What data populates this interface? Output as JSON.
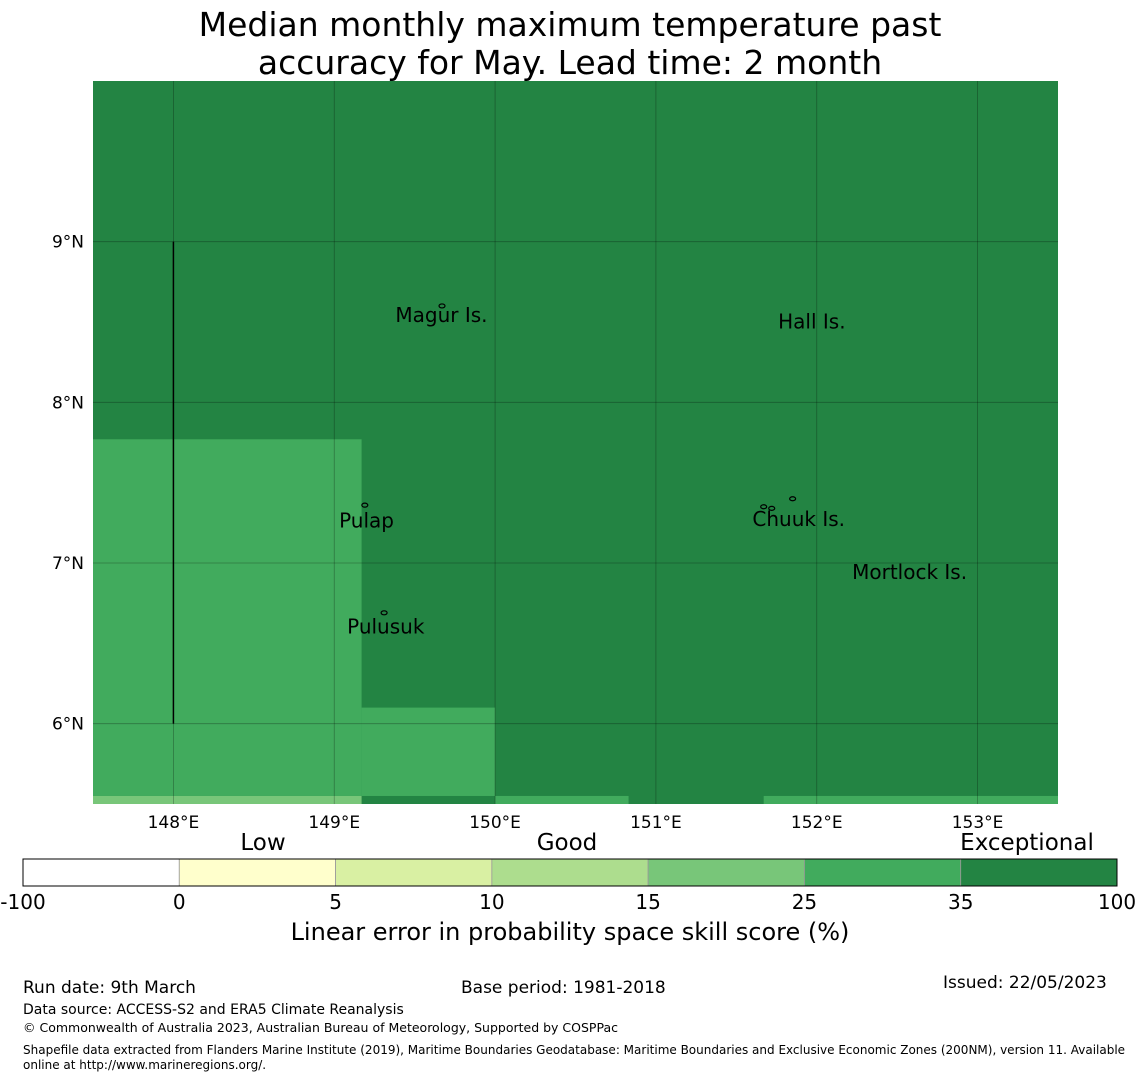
{
  "title": {
    "line1": "Median monthly maximum temperature past",
    "line2": "accuracy for May. Lead time: 2 month"
  },
  "map": {
    "lon_range": [
      147.5,
      153.5
    ],
    "lat_range": [
      5.5,
      10.0
    ],
    "lon_ticks": [
      {
        "value": 148,
        "label": "148°E"
      },
      {
        "value": 149,
        "label": "149°E"
      },
      {
        "value": 150,
        "label": "150°E"
      },
      {
        "value": 151,
        "label": "151°E"
      },
      {
        "value": 152,
        "label": "152°E"
      },
      {
        "value": 153,
        "label": "153°E"
      }
    ],
    "lat_ticks": [
      {
        "value": 9,
        "label": "9°N"
      },
      {
        "value": 8,
        "label": "8°N"
      },
      {
        "value": 7,
        "label": "7°N"
      },
      {
        "value": 6,
        "label": "6°N"
      }
    ],
    "background_category": "35-100",
    "regions": [
      {
        "category": "25-35",
        "lon": [
          147.5,
          149.17
        ],
        "lat": [
          5.55,
          7.77
        ]
      },
      {
        "category": "25-35",
        "lon": [
          149.17,
          150.0
        ],
        "lat": [
          5.55,
          6.1
        ]
      },
      {
        "category": "15-25",
        "lon": [
          147.5,
          149.17
        ],
        "lat": [
          5.5,
          5.55
        ]
      },
      {
        "category": "25-35",
        "lon": [
          150.0,
          150.83
        ],
        "lat": [
          5.5,
          5.55
        ]
      },
      {
        "category": "25-35",
        "lon": [
          151.67,
          153.5
        ],
        "lat": [
          5.5,
          5.55
        ]
      }
    ],
    "line": {
      "lon": 148.0,
      "lat": [
        6.0,
        9.0
      ]
    },
    "places": [
      {
        "name": "Magur Is.",
        "lon": 149.38,
        "lat": 8.5
      },
      {
        "name": "Hall Is.",
        "lon": 151.76,
        "lat": 8.46
      },
      {
        "name": "Pulap",
        "lon": 149.03,
        "lat": 7.22
      },
      {
        "name": "Chuuk Is.",
        "lon": 151.6,
        "lat": 7.23
      },
      {
        "name": "Mortlock Is.",
        "lon": 152.22,
        "lat": 6.9
      },
      {
        "name": "Pulusuk",
        "lon": 149.08,
        "lat": 6.56
      }
    ],
    "islands": [
      {
        "lon": 149.67,
        "lat": 8.6
      },
      {
        "lon": 149.19,
        "lat": 7.36
      },
      {
        "lon": 149.31,
        "lat": 6.69
      },
      {
        "lon": 151.85,
        "lat": 7.4
      },
      {
        "lon": 151.67,
        "lat": 7.35
      },
      {
        "lon": 151.72,
        "lat": 7.34
      }
    ]
  },
  "legend": {
    "categories": [
      {
        "label": "Low"
      },
      {
        "label": "Good"
      },
      {
        "label": "Exceptional"
      }
    ],
    "bins": [
      {
        "range": "-100-0",
        "color": "#ffffff"
      },
      {
        "range": "0-5",
        "color": "#ffffcc"
      },
      {
        "range": "5-10",
        "color": "#d9f0a3"
      },
      {
        "range": "10-15",
        "color": "#addd8e"
      },
      {
        "range": "15-25",
        "color": "#78c679"
      },
      {
        "range": "25-35",
        "color": "#41ab5d"
      },
      {
        "range": "35-100",
        "color": "#238443"
      }
    ],
    "tick_labels": [
      "-100",
      "0",
      "5",
      "10",
      "15",
      "25",
      "35",
      "100"
    ],
    "label": "Linear error in probability space skill score (%)"
  },
  "footer": {
    "run_date": "Run date: 9th March",
    "base_period": "Base period: 1981-2018",
    "issued": "Issued: 22/05/2023",
    "data_source": "Data source: ACCESS-S2 and ERA5 Climate Reanalysis",
    "copyright": "© Commonwealth of Australia 2023, Australian Bureau of Meteorology, Supported by COSPPac",
    "shapefile_line1": "Shapefile data extracted from Flanders Marine Institute (2019), Maritime Boundaries Geodatabase: Maritime Boundaries and Exclusive Economic Zones (200NM), version 11. Available",
    "shapefile_line2": "online at http://www.marineregions.org/."
  }
}
